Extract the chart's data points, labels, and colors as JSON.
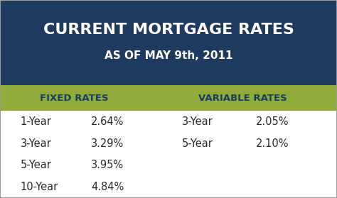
{
  "title": "CURRENT MORTGAGE RATES",
  "subtitle": "AS OF MAY 9th, 2011",
  "header_bg": "#1e3a5f",
  "subheader_bg": "#8fac3a",
  "body_bg": "#ffffff",
  "title_color": "#ffffff",
  "header_text_color": "#1e3a5f",
  "body_text_color": "#2a2a2a",
  "col_headers": [
    "FIXED RATES",
    "VARIABLE RATES"
  ],
  "fixed_labels": [
    "1-Year",
    "3-Year",
    "5-Year",
    "10-Year"
  ],
  "fixed_rates": [
    "2.64%",
    "3.29%",
    "3.95%",
    "4.84%"
  ],
  "variable_labels": [
    "3-Year",
    "5-Year"
  ],
  "variable_rates": [
    "2.05%",
    "2.10%"
  ],
  "title_fontsize": 16,
  "subtitle_fontsize": 11,
  "header_fontsize": 9.5,
  "body_fontsize": 10.5
}
